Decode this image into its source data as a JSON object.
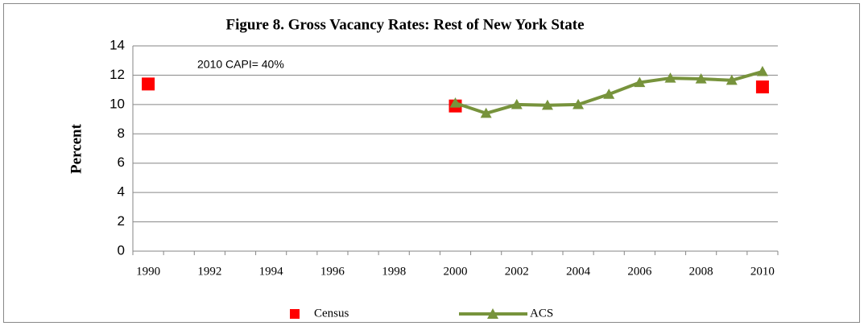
{
  "chart_data": {
    "type": "line",
    "title": "Figure 8. Gross Vacancy Rates:  Rest of New York State",
    "y_label": "Percent",
    "annotation": "2010 CAPI= 40%",
    "categories": [
      "1990",
      null,
      "1992",
      null,
      "1994",
      null,
      "1996",
      null,
      "1998",
      null,
      "2000",
      null,
      "2002",
      null,
      "2004",
      null,
      "2006",
      null,
      "2008",
      null,
      "2010"
    ],
    "series": [
      {
        "name": "Census",
        "color": "#ff0000",
        "marker": "square",
        "values": [
          11.4,
          null,
          null,
          null,
          null,
          null,
          null,
          null,
          null,
          null,
          9.9,
          null,
          null,
          null,
          null,
          null,
          null,
          null,
          null,
          null,
          11.2
        ]
      },
      {
        "name": "ACS",
        "color": "#77933c",
        "marker": "triangle",
        "values": [
          null,
          null,
          null,
          null,
          null,
          null,
          null,
          null,
          null,
          null,
          10.1,
          9.4,
          10.0,
          9.95,
          10.0,
          10.7,
          11.5,
          11.8,
          11.75,
          11.65,
          12.25
        ]
      }
    ],
    "ylim": [
      0,
      14
    ],
    "yticks": [
      0,
      2,
      4,
      6,
      8,
      10,
      12,
      14
    ],
    "grid": true,
    "legend": "bottom"
  }
}
